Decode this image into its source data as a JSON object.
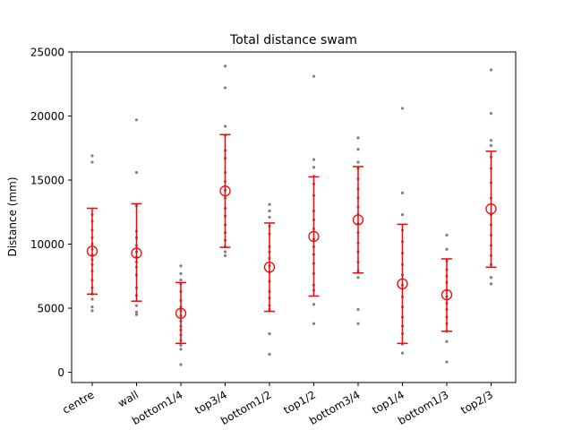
{
  "chart_data": {
    "type": "scatter",
    "title": "Total distance swam",
    "xlabel": "",
    "ylabel": "Distance (mm)",
    "ylim": [
      -800,
      25000
    ],
    "yticks": [
      0,
      5000,
      10000,
      15000,
      20000,
      25000
    ],
    "grid": false,
    "categories": [
      "centre",
      "wall",
      "bottom1/4",
      "top3/4",
      "bottom1/2",
      "top1/2",
      "bottom3/4",
      "top1/4",
      "bottom1/3",
      "top2/3"
    ],
    "colors": {
      "points": "#808080",
      "summary": "#ff0000"
    },
    "summary": [
      {
        "mean": 9450,
        "lower": 6100,
        "upper": 12800
      },
      {
        "mean": 9300,
        "lower": 5550,
        "upper": 13150
      },
      {
        "mean": 4600,
        "lower": 2250,
        "upper": 7000
      },
      {
        "mean": 14150,
        "lower": 9750,
        "upper": 18550
      },
      {
        "mean": 8200,
        "lower": 4750,
        "upper": 11650
      },
      {
        "mean": 10600,
        "lower": 5950,
        "upper": 15250
      },
      {
        "mean": 11900,
        "lower": 7750,
        "upper": 16050
      },
      {
        "mean": 6900,
        "lower": 2250,
        "upper": 11550
      },
      {
        "mean": 6050,
        "lower": 3200,
        "upper": 8850
      },
      {
        "mean": 12750,
        "lower": 8200,
        "upper": 17250
      }
    ],
    "points": [
      [
        16900,
        16400,
        12300,
        11800,
        11100,
        10500,
        10000,
        9600,
        9200,
        8800,
        8400,
        7900,
        7200,
        6600,
        6100,
        5700,
        5100,
        4800
      ],
      [
        19700,
        15600,
        13000,
        11000,
        10500,
        9900,
        9400,
        9000,
        8600,
        8200,
        7600,
        6600,
        6000,
        5200,
        4700,
        4500
      ],
      [
        8300,
        7700,
        7200,
        6900,
        6300,
        5600,
        5100,
        4800,
        4400,
        4000,
        3600,
        3300,
        2900,
        2500,
        2100,
        1800,
        600
      ],
      [
        23900,
        22200,
        19200,
        18500,
        17300,
        16700,
        15600,
        14900,
        14200,
        13600,
        12800,
        12200,
        11500,
        10900,
        10300,
        9800,
        9400,
        9100
      ],
      [
        13100,
        12600,
        12100,
        11400,
        10800,
        9800,
        9400,
        8900,
        8300,
        7800,
        7100,
        6300,
        5800,
        5200,
        4900,
        3000,
        1400
      ],
      [
        23100,
        16600,
        16000,
        15300,
        14700,
        13800,
        12600,
        11900,
        11200,
        10400,
        9800,
        9200,
        8500,
        7700,
        6800,
        6400,
        5300,
        3800
      ],
      [
        18300,
        17400,
        16400,
        15900,
        15100,
        14300,
        13600,
        12900,
        12300,
        11600,
        10900,
        10100,
        9400,
        8600,
        7900,
        7400,
        4900,
        3800
      ],
      [
        20600,
        14000,
        12300,
        11100,
        10200,
        9300,
        8400,
        7600,
        6800,
        5900,
        5100,
        4300,
        3600,
        3000,
        2200,
        1500
      ],
      [
        10700,
        9600,
        8700,
        8000,
        7500,
        7000,
        6400,
        5900,
        5400,
        4900,
        4300,
        3800,
        3200,
        2400,
        800
      ],
      [
        23600,
        20200,
        18100,
        17700,
        16800,
        15900,
        14800,
        13600,
        12300,
        11500,
        10700,
        9900,
        9100,
        8400,
        7400,
        6900
      ]
    ]
  }
}
